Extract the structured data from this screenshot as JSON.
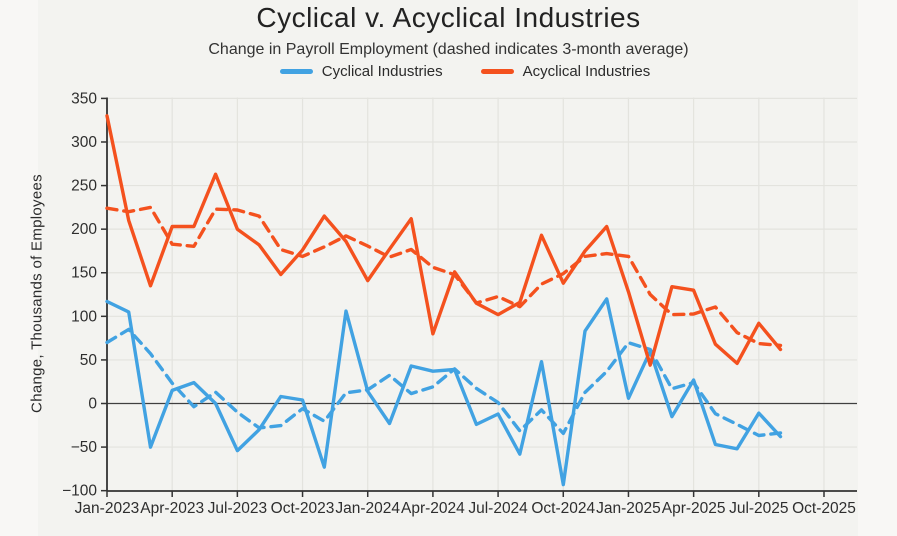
{
  "page": {
    "background": "#f8f7f5",
    "panel_background": "#f3f3f0"
  },
  "chart": {
    "title": "Cyclical v. Acyclical Industries",
    "subtitle": "Change in Payroll Employment (dashed indicates 3-month average)",
    "ylabel": "Change, Thousands of Employees",
    "legend": [
      {
        "label": "Cyclical Industries",
        "color": "#41a2e2"
      },
      {
        "label": "Acyclical Industries",
        "color": "#f4511e"
      }
    ],
    "colors": {
      "cyclical": "#41a2e2",
      "acyclical": "#f4511e",
      "grid": "#e3e3de",
      "zero_line": "#3f3f3f",
      "axis": "#333333",
      "tick_text": "#2e2e2e"
    }
  },
  "chart_data": {
    "type": "line",
    "title": "Cyclical v. Acyclical Industries",
    "subtitle": "Change in Payroll Employment (dashed indicates 3-month average)",
    "xlabel": "",
    "ylabel": "Change, Thousands of Employees",
    "ylim": [
      -100,
      350
    ],
    "y_ticks": [
      350,
      300,
      250,
      200,
      150,
      100,
      50,
      0,
      -50,
      -100
    ],
    "grid": true,
    "legend_position": "top-center",
    "x": [
      "Jan-2023",
      "Feb-2023",
      "Mar-2023",
      "Apr-2023",
      "May-2023",
      "Jun-2023",
      "Jul-2023",
      "Aug-2023",
      "Sep-2023",
      "Oct-2023",
      "Nov-2023",
      "Dec-2023",
      "Jan-2024",
      "Feb-2024",
      "Mar-2024",
      "Apr-2024",
      "May-2024",
      "Jun-2024",
      "Jul-2024",
      "Aug-2024",
      "Sep-2024",
      "Oct-2024",
      "Nov-2024",
      "Dec-2024",
      "Jan-2025",
      "Feb-2025",
      "Mar-2025",
      "Apr-2025",
      "May-2025",
      "Jun-2025",
      "Jul-2025",
      "Aug-2025"
    ],
    "x_tick_labels": [
      "Jan-2023",
      "Apr-2023",
      "Jul-2023",
      "Oct-2023",
      "Jan-2024",
      "Apr-2024",
      "Jul-2024",
      "Oct-2024",
      "Jan-2025",
      "Apr-2025",
      "Jul-2025",
      "Oct-2025"
    ],
    "series": [
      {
        "name": "Cyclical Industries",
        "style": "solid",
        "color": "#41a2e2",
        "values": [
          117,
          105,
          -50,
          15,
          24,
          0,
          -54,
          -30,
          8,
          4,
          -73,
          106,
          14,
          -23,
          43,
          37,
          39,
          -24,
          -12,
          -58,
          48,
          -93,
          83,
          120,
          6,
          60,
          -15,
          27,
          -47,
          -52,
          -11,
          -38
        ]
      },
      {
        "name": "Cyclical Industries (3-month average)",
        "style": "dashed",
        "color": "#41a2e2",
        "values": [
          70,
          85,
          57.3,
          23.3,
          -3.7,
          13,
          -10,
          -28,
          -25.3,
          -6,
          -20.3,
          12.3,
          15.7,
          32.3,
          11.3,
          19,
          39.7,
          17.3,
          1,
          -31.3,
          -7.3,
          -34.3,
          12.7,
          36.7,
          69.7,
          62,
          17,
          24,
          -11.7,
          -24,
          -36.7,
          -33.7
        ]
      },
      {
        "name": "Acyclical Industries",
        "style": "solid",
        "color": "#f4511e",
        "values": [
          330,
          210,
          135,
          203,
          203,
          263,
          200,
          182,
          148,
          176,
          215,
          186,
          141,
          177,
          212,
          80,
          151,
          115,
          102,
          116,
          193,
          138,
          175,
          203,
          128,
          44,
          134,
          130,
          68,
          46,
          92,
          62
        ]
      },
      {
        "name": "Acyclical Industries (3-month average)",
        "style": "dashed",
        "color": "#f4511e",
        "values": [
          224,
          220,
          225,
          182.7,
          180.3,
          223,
          222,
          215,
          176.7,
          168.7,
          179.7,
          192.3,
          180.7,
          168,
          176.7,
          156.3,
          147.7,
          115.3,
          122.7,
          111,
          137,
          149,
          168.7,
          172,
          168.7,
          125,
          102,
          102.7,
          110.7,
          81.3,
          68.7,
          66.7
        ]
      }
    ]
  }
}
